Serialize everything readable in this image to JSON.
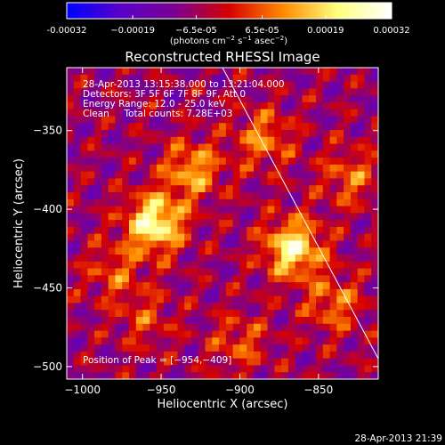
{
  "chart_data": {
    "type": "heatmap",
    "title": "Reconstructed RHESSI Image",
    "xlabel": "Heliocentric X (arcsec)",
    "ylabel": "Heliocentric Y (arcsec)",
    "xlim": [
      -1010,
      -812
    ],
    "ylim": [
      -508,
      -310
    ],
    "xticks": [
      -1000,
      -950,
      -900,
      -850
    ],
    "yticks": [
      -350,
      -400,
      -450,
      -500
    ],
    "xtick_labels": [
      "−1000",
      "−950",
      "−900",
      "−850"
    ],
    "ytick_labels": [
      "−350",
      "−400",
      "−450",
      "−500"
    ],
    "colorbar": {
      "range": [
        -0.00032,
        0.00032
      ],
      "ticks": [
        -0.00032,
        -0.00019,
        -6.5e-05,
        6.5e-05,
        0.00019,
        0.00032
      ],
      "tick_labels": [
        "-0.00032",
        "−0.00019",
        "−6.5e-05",
        "6.5e-05",
        "0.00019",
        "0.00032"
      ],
      "unit_prefix": "(photons cm",
      "unit_sup1": "−2",
      "unit_mid": " s",
      "unit_sup2": "−1",
      "unit_mid2": " asec",
      "unit_sup3": "−2",
      "unit_suffix": ")",
      "colors": [
        "#0000ff",
        "#5a00c8",
        "#7a0090",
        "#d60000",
        "#ff8c00",
        "#ffff80",
        "#ffffff"
      ]
    },
    "peaks": [
      {
        "x": -954,
        "y": -409,
        "value": 0.00032
      },
      {
        "x": -866,
        "y": -425,
        "value": 0.0003
      },
      {
        "x": -930,
        "y": -375,
        "value": 0.0002
      },
      {
        "x": -885,
        "y": -355,
        "value": 0.00016
      },
      {
        "x": -980,
        "y": -440,
        "value": 0.00012
      },
      {
        "x": -840,
        "y": -460,
        "value": 0.00015
      },
      {
        "x": -830,
        "y": -380,
        "value": 0.00014
      },
      {
        "x": -960,
        "y": -470,
        "value": 0.0001
      },
      {
        "x": -900,
        "y": -485,
        "value": 0.00012
      }
    ],
    "limb_line": [
      [
        -911,
        -310
      ],
      [
        -812,
        -495
      ]
    ],
    "annotations": {
      "time": "28-Apr-2013 13:15:38.000 to 13:21:04.000",
      "detectors": "Detectors: 3F 5F 6F 7F 8F 9F, Att 0",
      "energy": "Energy Range: 12.0 - 25.0 keV",
      "clean": "Clean     Total counts: 7.28E+03",
      "peak": "Position of Peak = [−954,−409]"
    },
    "footer_timestamp": "28-Apr-2013 21:39"
  }
}
